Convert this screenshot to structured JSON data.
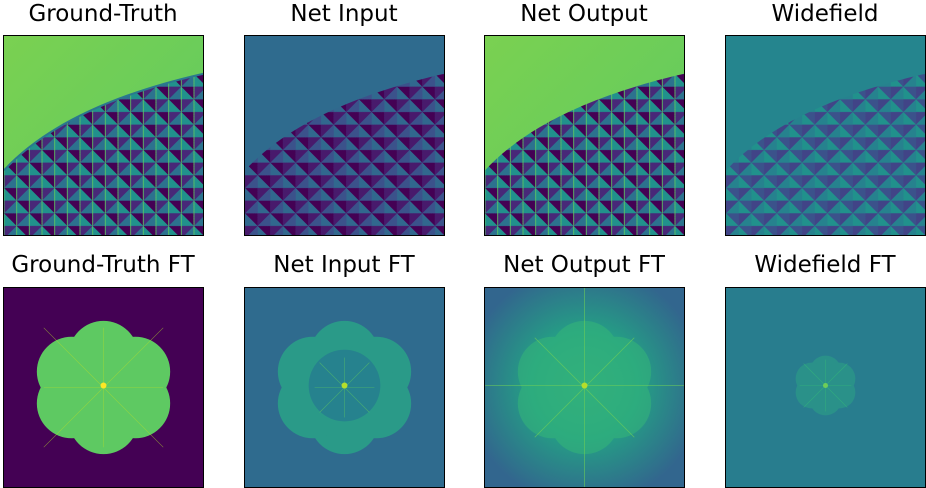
{
  "panels": {
    "ground_truth": {
      "title": "Ground-Truth"
    },
    "net_input": {
      "title": "Net Input"
    },
    "net_output": {
      "title": "Net Output"
    },
    "widefield": {
      "title": "Widefield"
    },
    "ground_truth_ft": {
      "title": "Ground-Truth FT"
    },
    "net_input_ft": {
      "title": "Net Input FT"
    },
    "net_output_ft": {
      "title": "Net Output FT"
    },
    "widefield_ft": {
      "title": "Widefield FT"
    }
  },
  "colors": {
    "viridis_dark": "#440154",
    "viridis_purple": "#482878",
    "viridis_blue": "#31688e",
    "viridis_teal": "#21918c",
    "viridis_green": "#35b779",
    "viridis_light": "#6ece58",
    "viridis_yellow": "#b5de2b"
  }
}
